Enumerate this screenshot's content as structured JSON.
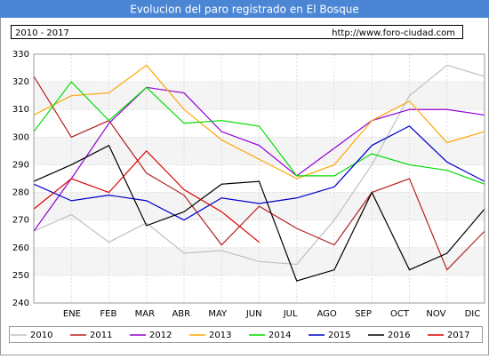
{
  "chart_data": {
    "type": "line",
    "title": "Evolucion del paro registrado en El Bosque",
    "subtitle": "2010 - 2017",
    "source": "http://www.foro-ciudad.com",
    "categories": [
      null,
      "ENE",
      "FEB",
      "MAR",
      "ABR",
      "MAY",
      "JUN",
      "JUL",
      "AGO",
      "SEP",
      "OCT",
      "NOV",
      "DIC"
    ],
    "ylim": [
      240,
      330
    ],
    "yticks": [
      240,
      250,
      260,
      270,
      280,
      290,
      300,
      310,
      320,
      330
    ],
    "grid": true,
    "series": [
      {
        "name": "2010",
        "color": "#c0c0c0",
        "values": [
          266,
          272,
          262,
          269,
          258,
          259,
          255,
          254,
          270,
          290,
          315,
          326,
          322
        ]
      },
      {
        "name": "2011",
        "color": "#b22222",
        "values": [
          322,
          300,
          306,
          287,
          279,
          261,
          275,
          267,
          261,
          280,
          285,
          252,
          266
        ]
      },
      {
        "name": "2012",
        "color": "#9400d3",
        "values": [
          266,
          285,
          305,
          318,
          316,
          302,
          297,
          286,
          296,
          306,
          310,
          310,
          308
        ]
      },
      {
        "name": "2013",
        "color": "#ffa500",
        "values": [
          308,
          315,
          316,
          326,
          310,
          299,
          292,
          285,
          290,
          306,
          313,
          298,
          302
        ]
      },
      {
        "name": "2014",
        "color": "#00dd00",
        "values": [
          302,
          320,
          306,
          318,
          305,
          306,
          304,
          286,
          286,
          294,
          290,
          288,
          283
        ]
      },
      {
        "name": "2015",
        "color": "#0000cc",
        "values": [
          283,
          277,
          279,
          277,
          270,
          278,
          276,
          278,
          282,
          297,
          304,
          291,
          284
        ]
      },
      {
        "name": "2016",
        "color": "#000000",
        "values": [
          284,
          290,
          297,
          268,
          273,
          283,
          284,
          248,
          252,
          280,
          252,
          258,
          274
        ]
      },
      {
        "name": "2017",
        "color": "#dd0000",
        "values": [
          274,
          285,
          280,
          295,
          281,
          273,
          262,
          null,
          null,
          null,
          null,
          null,
          null
        ]
      }
    ]
  }
}
